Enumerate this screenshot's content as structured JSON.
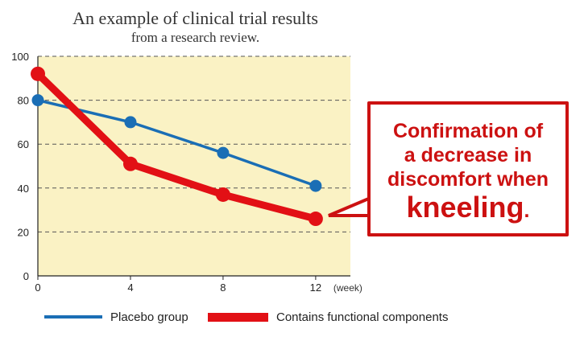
{
  "title": "An example of clinical trial results",
  "subtitle": "from a research review.",
  "colors": {
    "plot_bg": "#faf2c4",
    "placebo": "#1a6eb5",
    "functional": "#e21015",
    "callout": "#cc1111",
    "grid": "#555555"
  },
  "chart_data": {
    "type": "line",
    "x": [
      0,
      4,
      8,
      12
    ],
    "xlabel": "(week)",
    "ylabel": "",
    "ylim": [
      0,
      100
    ],
    "xlim": [
      0,
      13.5
    ],
    "yticks": [
      0,
      20,
      40,
      60,
      80,
      100
    ],
    "xticks": [
      0,
      4,
      8,
      12
    ],
    "grid": true,
    "legend_position": "bottom",
    "series": [
      {
        "name": "Placebo group",
        "values": [
          80,
          70,
          56,
          41
        ]
      },
      {
        "name": "Contains functional components",
        "values": [
          92,
          51,
          37,
          26
        ]
      }
    ]
  },
  "callout": {
    "lines": [
      "Confirmation of",
      "a decrease in",
      "discomfort when"
    ],
    "emphasis": "kneeling",
    "punct": "."
  }
}
